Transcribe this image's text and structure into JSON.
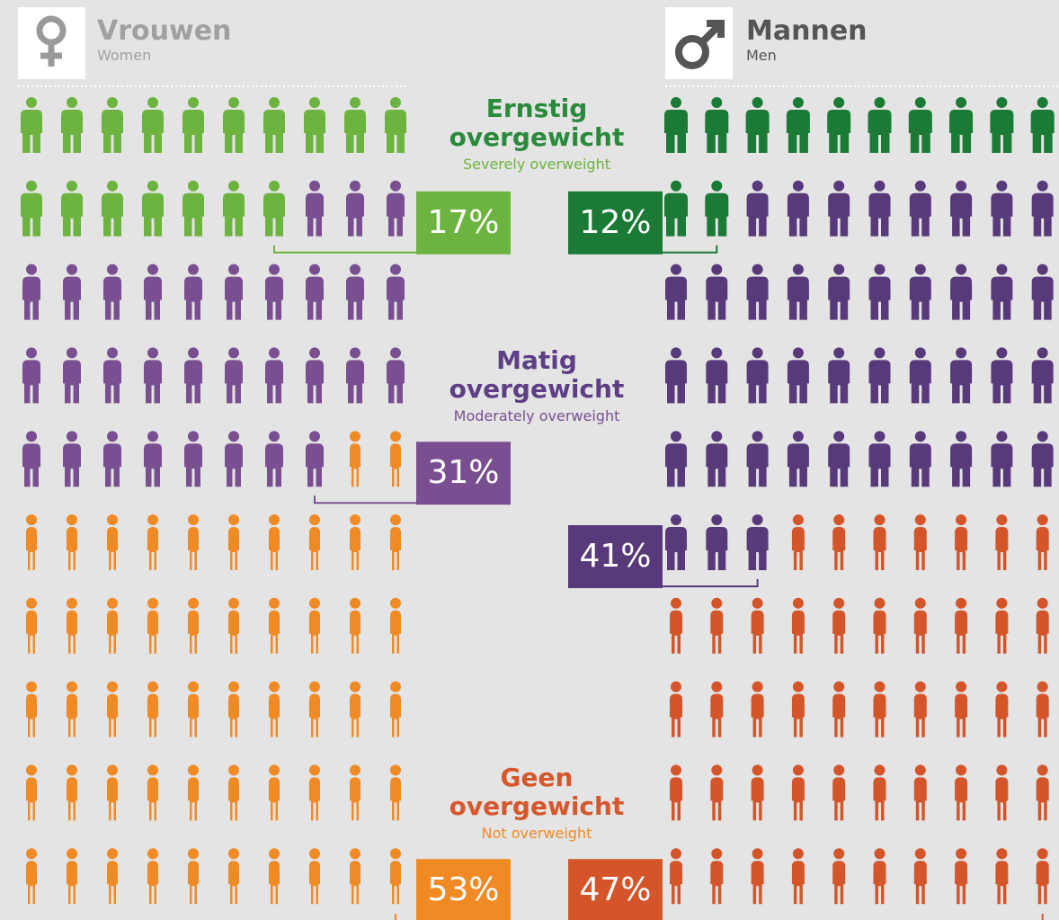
{
  "chart_data": {
    "type": "pictogram",
    "categories": [
      "Ernstig overgewicht",
      "Matig overgewicht",
      "Geen overgewicht"
    ],
    "category_subtitles": [
      "Severely overweight",
      "Moderately overweight",
      "Not overweight"
    ],
    "category_colors": [
      "#2a8a3c",
      "#5e3f86",
      "#d6572b"
    ],
    "category_subtitle_colors": [
      "#6db33f",
      "#7a4f91",
      "#f08a24"
    ],
    "series": [
      {
        "name": "Vrouwen",
        "subtitle": "Women",
        "colors": [
          "#6db33f",
          "#7a4f91",
          "#f08a24"
        ],
        "values": [
          17,
          31,
          53
        ],
        "value_labels": [
          "17%",
          "31%",
          "53%"
        ]
      },
      {
        "name": "Mannen",
        "subtitle": "Men",
        "colors": [
          "#1a7a36",
          "#583a7a",
          "#d4552a"
        ],
        "values": [
          12,
          41,
          47
        ],
        "value_labels": [
          "12%",
          "41%",
          "47%"
        ]
      }
    ]
  }
}
